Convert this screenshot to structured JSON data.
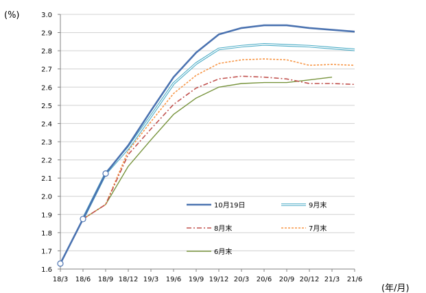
{
  "chart_data": {
    "type": "line",
    "ylabel": "(%)",
    "xlabel": "(年/月)",
    "ylim": [
      1.6,
      3.0
    ],
    "ytick_step": 0.1,
    "grid": "horizontal",
    "legend_position": "lower-right inside plot",
    "categories": [
      "18/3",
      "18/6",
      "18/9",
      "18/12",
      "19/3",
      "19/6",
      "19/9",
      "19/12",
      "20/3",
      "20/6",
      "20/9",
      "20/12",
      "21/3",
      "21/6"
    ],
    "y_ticks": [
      "1.6",
      "1.7",
      "1.8",
      "1.9",
      "2.0",
      "2.1",
      "2.2",
      "2.3",
      "2.4",
      "2.5",
      "2.6",
      "2.7",
      "2.8",
      "2.9",
      "3.0"
    ],
    "series": [
      {
        "name": "10月19日",
        "color": "#4a72b0",
        "style": "solid-thick",
        "values": [
          1.63,
          1.875,
          2.125,
          2.28,
          2.47,
          2.655,
          2.79,
          2.89,
          2.925,
          2.94,
          2.94,
          2.925,
          2.915,
          2.905
        ],
        "markers": [
          0,
          1,
          2
        ]
      },
      {
        "name": "9月末",
        "color": "#4bacc6",
        "style": "double",
        "values": [
          null,
          1.875,
          2.125,
          2.265,
          2.44,
          2.62,
          2.73,
          2.81,
          2.825,
          2.835,
          2.83,
          2.825,
          2.815,
          2.805
        ]
      },
      {
        "name": "8月末",
        "color": "#c0504d",
        "style": "dash-dot",
        "values": [
          null,
          1.875,
          1.955,
          2.23,
          2.37,
          2.505,
          2.595,
          2.645,
          2.66,
          2.655,
          2.645,
          2.62,
          2.62,
          2.615
        ]
      },
      {
        "name": "7月末",
        "color": "#f79646",
        "style": "dashed",
        "values": [
          null,
          1.875,
          1.955,
          2.25,
          2.41,
          2.565,
          2.665,
          2.73,
          2.75,
          2.755,
          2.75,
          2.72,
          2.725,
          2.72
        ]
      },
      {
        "name": "6月末",
        "color": "#77933c",
        "style": "solid-thin",
        "values": [
          null,
          1.875,
          1.955,
          2.165,
          2.31,
          2.45,
          2.54,
          2.6,
          2.62,
          2.625,
          2.625,
          2.64,
          2.655,
          null
        ]
      }
    ]
  }
}
